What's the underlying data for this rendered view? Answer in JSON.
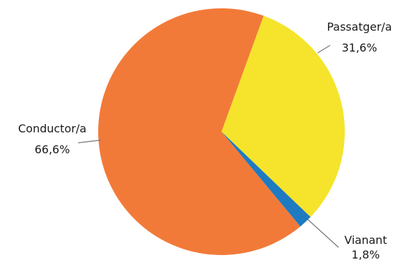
{
  "chart_data": {
    "type": "pie",
    "title": "",
    "slices": [
      {
        "name": "Passatger/a",
        "value": 31.6,
        "label": "31,6%",
        "color": "#f5e42b"
      },
      {
        "name": "Vianant",
        "value": 1.8,
        "label": "1,8%",
        "color": "#1e7bc1"
      },
      {
        "name": "Conductor/a",
        "value": 66.6,
        "label": "66,6%",
        "color": "#f27a38"
      }
    ],
    "start_angle_deg": 20,
    "direction": "clockwise",
    "legend": "none",
    "label_placement": "outside-with-leader-lines"
  }
}
